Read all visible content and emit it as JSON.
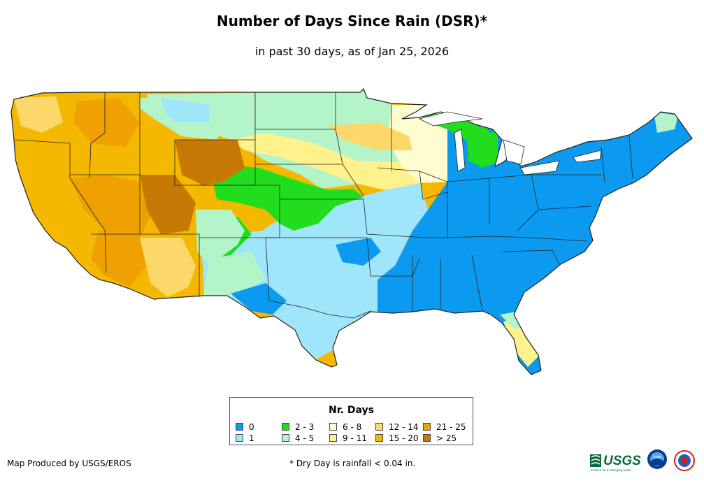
{
  "title": "Number of Days Since Rain (DSR)*",
  "subtitle": "in past 30 days, as of Jan 25, 2026",
  "legend": {
    "title": "Nr. Days",
    "items": [
      {
        "label": "0",
        "color": "#0b9af0"
      },
      {
        "label": "1",
        "color": "#a0e6fa"
      },
      {
        "label": "2 - 3",
        "color": "#22dd1e"
      },
      {
        "label": "4 - 5",
        "color": "#b3f5c8"
      },
      {
        "label": "6 - 8",
        "color": "#fffdcf"
      },
      {
        "label": "9 - 11",
        "color": "#fff28c"
      },
      {
        "label": "12 - 14",
        "color": "#fcd86a"
      },
      {
        "label": "15 - 20",
        "color": "#f5b800"
      },
      {
        "label": "21 - 25",
        "color": "#eea100"
      },
      {
        "label": "> 25",
        "color": "#c67a05"
      }
    ]
  },
  "credit": "Map Produced by USGS/EROS",
  "footnote": "* Dry Day is rainfall < 0.04 in.",
  "logos": {
    "usgs": "USGS",
    "usgs_tagline": "science for a changing world",
    "noaa": "noaa"
  }
}
